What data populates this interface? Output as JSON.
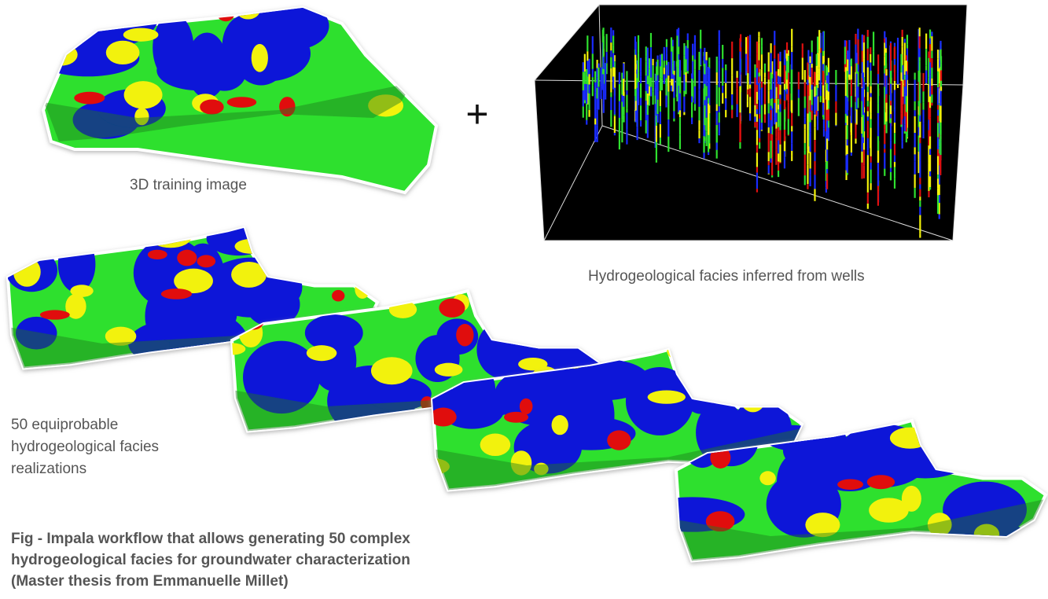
{
  "panels": {
    "training_image": {
      "label": "3D training image"
    },
    "wells": {
      "label": "Hydrogeological facies inferred from wells"
    },
    "realizations": {
      "label_lines": [
        "50 equiprobable",
        "hydrogeological facies",
        "realizations"
      ]
    }
  },
  "operator": "+",
  "caption": {
    "lines": [
      "Fig - Impala workflow that allows generating 50 complex",
      "hydrogeological facies for groundwater characterization",
      "(Master thesis from Emmanuelle Millet)"
    ]
  }
}
